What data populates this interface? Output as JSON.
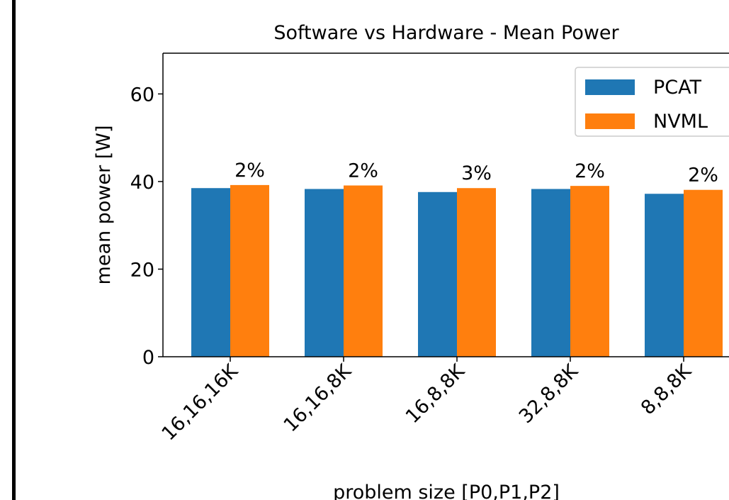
{
  "chart_data": {
    "type": "bar",
    "title": "Software vs Hardware - Mean Power",
    "xlabel": "problem size [P0,P1,P2]",
    "ylabel": "mean power [W]",
    "categories": [
      "16,16,16K",
      "16,16,8K",
      "16,8,8K",
      "32,8,8K",
      "8,8,8K"
    ],
    "series": [
      {
        "name": "PCAT",
        "color": "#1f77b4",
        "values": [
          38.5,
          38.3,
          37.6,
          38.3,
          37.2
        ]
      },
      {
        "name": "NVML",
        "color": "#ff7f0e",
        "values": [
          39.2,
          39.1,
          38.5,
          39.0,
          38.1
        ]
      }
    ],
    "difference_labels": [
      "2%",
      "2%",
      "3%",
      "2%",
      "2%"
    ],
    "ylim": [
      0,
      69.3
    ],
    "yticks": [
      0,
      20,
      40,
      60
    ],
    "legend": "upper right"
  }
}
